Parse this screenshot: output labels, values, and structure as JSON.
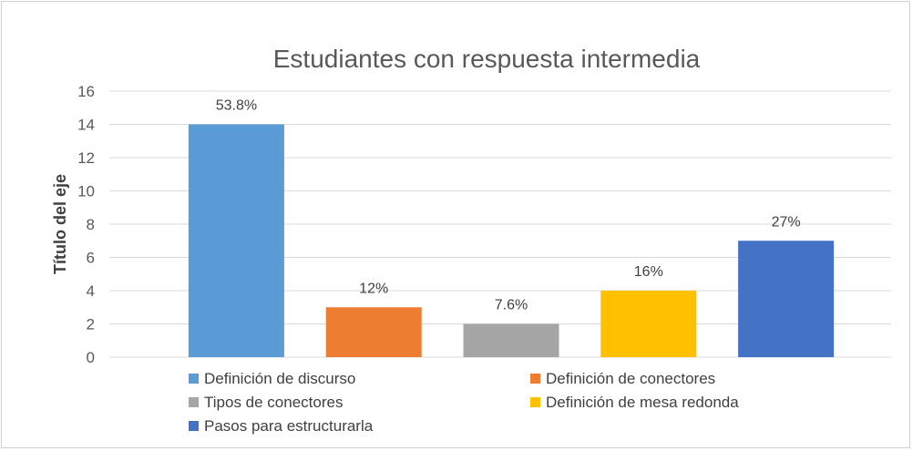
{
  "chart_data": {
    "type": "bar",
    "title": "Estudiantes con respuesta intermedia",
    "xlabel": "",
    "ylabel": "Título del eje",
    "ylim": [
      0,
      16
    ],
    "yticks": [
      0,
      2,
      4,
      6,
      8,
      10,
      12,
      14,
      16
    ],
    "grid": true,
    "legend_position": "bottom",
    "series": [
      {
        "name": "Definición de discurso",
        "value": 14,
        "label": "53.8%",
        "color": "#5b9bd5"
      },
      {
        "name": "Definición de conectores",
        "value": 3,
        "label": "12%",
        "color": "#ed7d31"
      },
      {
        "name": "Tipos de conectores",
        "value": 2,
        "label": "7.6%",
        "color": "#a5a5a5"
      },
      {
        "name": "Definición de mesa redonda",
        "value": 4,
        "label": "16%",
        "color": "#ffc000"
      },
      {
        "name": "Pasos para estructurarla",
        "value": 7,
        "label": "27%",
        "color": "#4472c4"
      }
    ]
  }
}
